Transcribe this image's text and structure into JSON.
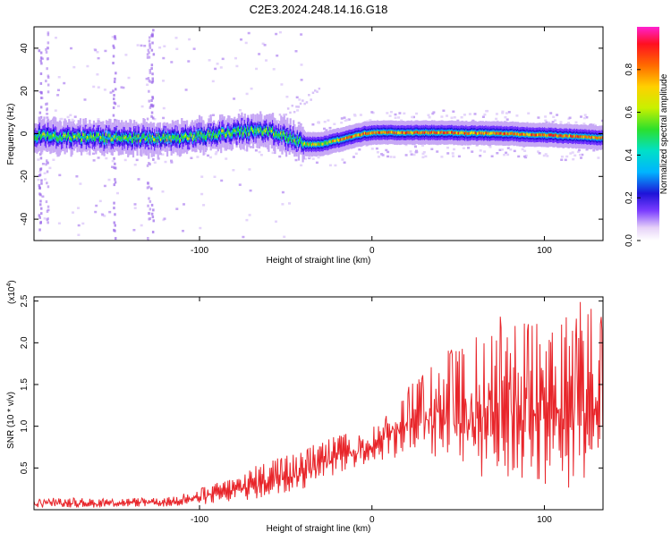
{
  "figure_title": "C2E3.2024.248.14.16.G18",
  "chart_data": [
    {
      "type": "heatmap",
      "title": "C2E3.2024.248.14.16.G18",
      "xlabel": "Height of straight line (km)",
      "ylabel": "Frequency (Hz)",
      "xlim": [
        -196,
        134
      ],
      "ylim": [
        -50,
        50
      ],
      "x_ticks": [
        -100,
        0,
        100
      ],
      "y_ticks": [
        40,
        20,
        0,
        -20,
        -40
      ],
      "colorbar": {
        "label": "Normalized spectral amplitude",
        "range": [
          0.0,
          1.0
        ],
        "ticks": [
          "0.0",
          "0.2",
          "0.4",
          "0.6",
          "0.8"
        ],
        "tick_values": [
          0.0,
          0.2,
          0.4,
          0.6,
          0.8
        ]
      },
      "ridge_center_hz": [
        {
          "x": -196,
          "y": -1
        },
        {
          "x": -150,
          "y": -2
        },
        {
          "x": -110,
          "y": -2
        },
        {
          "x": -80,
          "y": 1
        },
        {
          "x": -60,
          "y": 1
        },
        {
          "x": -48,
          "y": -2
        },
        {
          "x": -38,
          "y": -5
        },
        {
          "x": -30,
          "y": -5
        },
        {
          "x": -15,
          "y": -2
        },
        {
          "x": -5,
          "y": 0
        },
        {
          "x": 0,
          "y": 0.5
        },
        {
          "x": 40,
          "y": 0.5
        },
        {
          "x": 80,
          "y": 0
        },
        {
          "x": 110,
          "y": -1
        },
        {
          "x": 134,
          "y": -2
        }
      ]
    },
    {
      "type": "line",
      "xlabel": "Height of straight line (km)",
      "ylabel": "SNR (10 * v/v)",
      "y_scale_label": "(x10",
      "y_scale_exponent": "4",
      "xlim": [
        -196,
        134
      ],
      "ylim": [
        0,
        2.55
      ],
      "x_ticks": [
        -100,
        0,
        100
      ],
      "y_ticks": [
        0.5,
        1.0,
        1.5,
        2.0,
        2.5
      ],
      "y_tick_labels": [
        "0.5",
        "1.0",
        "1.5",
        "2.0",
        "2.5"
      ],
      "series": [
        {
          "color": "#e8252a",
          "envelope_x": [
            -196,
            -180,
            -160,
            -140,
            -120,
            -100,
            -80,
            -60,
            -40,
            -20,
            0,
            20,
            40,
            60,
            80,
            100,
            120,
            134
          ],
          "envelope_upper": [
            0.12,
            0.15,
            0.13,
            0.14,
            0.14,
            0.25,
            0.4,
            0.6,
            0.75,
            0.9,
            1.0,
            1.5,
            1.9,
            2.1,
            2.5,
            2.2,
            2.5,
            2.5
          ],
          "envelope_lower": [
            0.02,
            0.02,
            0.02,
            0.03,
            0.03,
            0.05,
            0.08,
            0.12,
            0.2,
            0.4,
            0.55,
            0.6,
            0.5,
            0.3,
            0.2,
            0.2,
            0.1,
            0.1
          ]
        }
      ]
    }
  ]
}
